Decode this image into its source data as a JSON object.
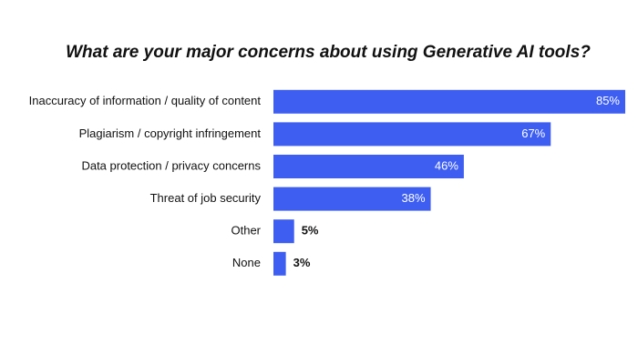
{
  "chart_data": {
    "type": "bar",
    "orientation": "horizontal",
    "title": "What are your major concerns about using Generative AI tools?",
    "categories": [
      "Inaccuracy of information / quality of content",
      "Plagiarism / copyright infringement",
      "Data protection / privacy concerns",
      "Threat of job security",
      "Other",
      "None"
    ],
    "values": [
      85,
      67,
      46,
      38,
      5,
      3
    ],
    "value_labels": [
      "85%",
      "67%",
      "46%",
      "38%",
      "5%",
      "3%"
    ],
    "color": "#3d5ef0"
  }
}
